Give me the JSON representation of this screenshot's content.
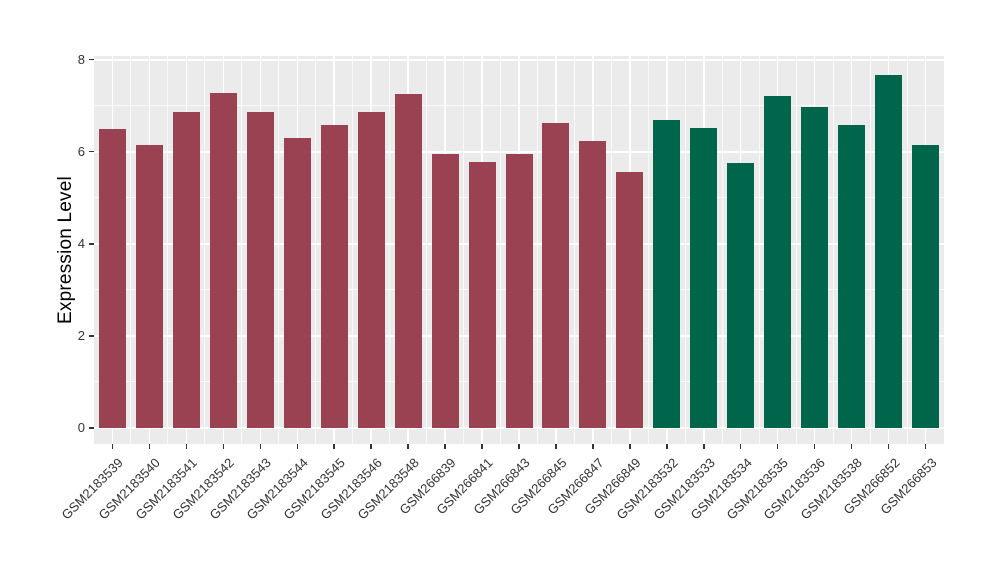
{
  "chart_data": {
    "type": "bar",
    "title": "",
    "xlabel": "",
    "ylabel": "Expression Level",
    "ylim": [
      0,
      8
    ],
    "yticks": [
      0,
      2,
      4,
      6,
      8
    ],
    "yminorticks": [
      1,
      3,
      5,
      7
    ],
    "grid": "ggplot style: gray panel, white major gridlines at y ticks and bar centers, white minor gridlines at odd values and category boundaries",
    "legend_position": "none",
    "categories": [
      "GSM2183539",
      "GSM2183540",
      "GSM2183541",
      "GSM2183542",
      "GSM2183543",
      "GSM2183544",
      "GSM2183545",
      "GSM2183546",
      "GSM2183548",
      "GSM266839",
      "GSM266841",
      "GSM266843",
      "GSM266845",
      "GSM266847",
      "GSM266849",
      "GSM2183532",
      "GSM2183533",
      "GSM2183534",
      "GSM2183535",
      "GSM2183536",
      "GSM2183538",
      "GSM266852",
      "GSM266853"
    ],
    "series": [
      {
        "name": "Expression Level",
        "values": [
          6.5,
          6.15,
          6.87,
          7.28,
          6.87,
          6.29,
          6.57,
          6.87,
          7.26,
          5.94,
          5.77,
          5.94,
          6.63,
          6.24,
          5.57,
          6.68,
          6.52,
          5.76,
          7.21,
          6.98,
          6.57,
          7.67,
          6.15
        ]
      }
    ],
    "bar_groups": [
      {
        "color": "#9A4152",
        "start_index": 0,
        "count": 15
      },
      {
        "color": "#00664B",
        "start_index": 15,
        "count": 8
      }
    ]
  },
  "style": {
    "panel_bg": "#EBEBEB",
    "grid_major_color": "#FFFFFF",
    "grid_minor_color": "rgba(255,255,255,0.75)",
    "tick_mark_color": "#333333",
    "tick_label_color": "#333333",
    "axis_title_color": "#000000",
    "figure_bg": "#FFFFFF"
  }
}
